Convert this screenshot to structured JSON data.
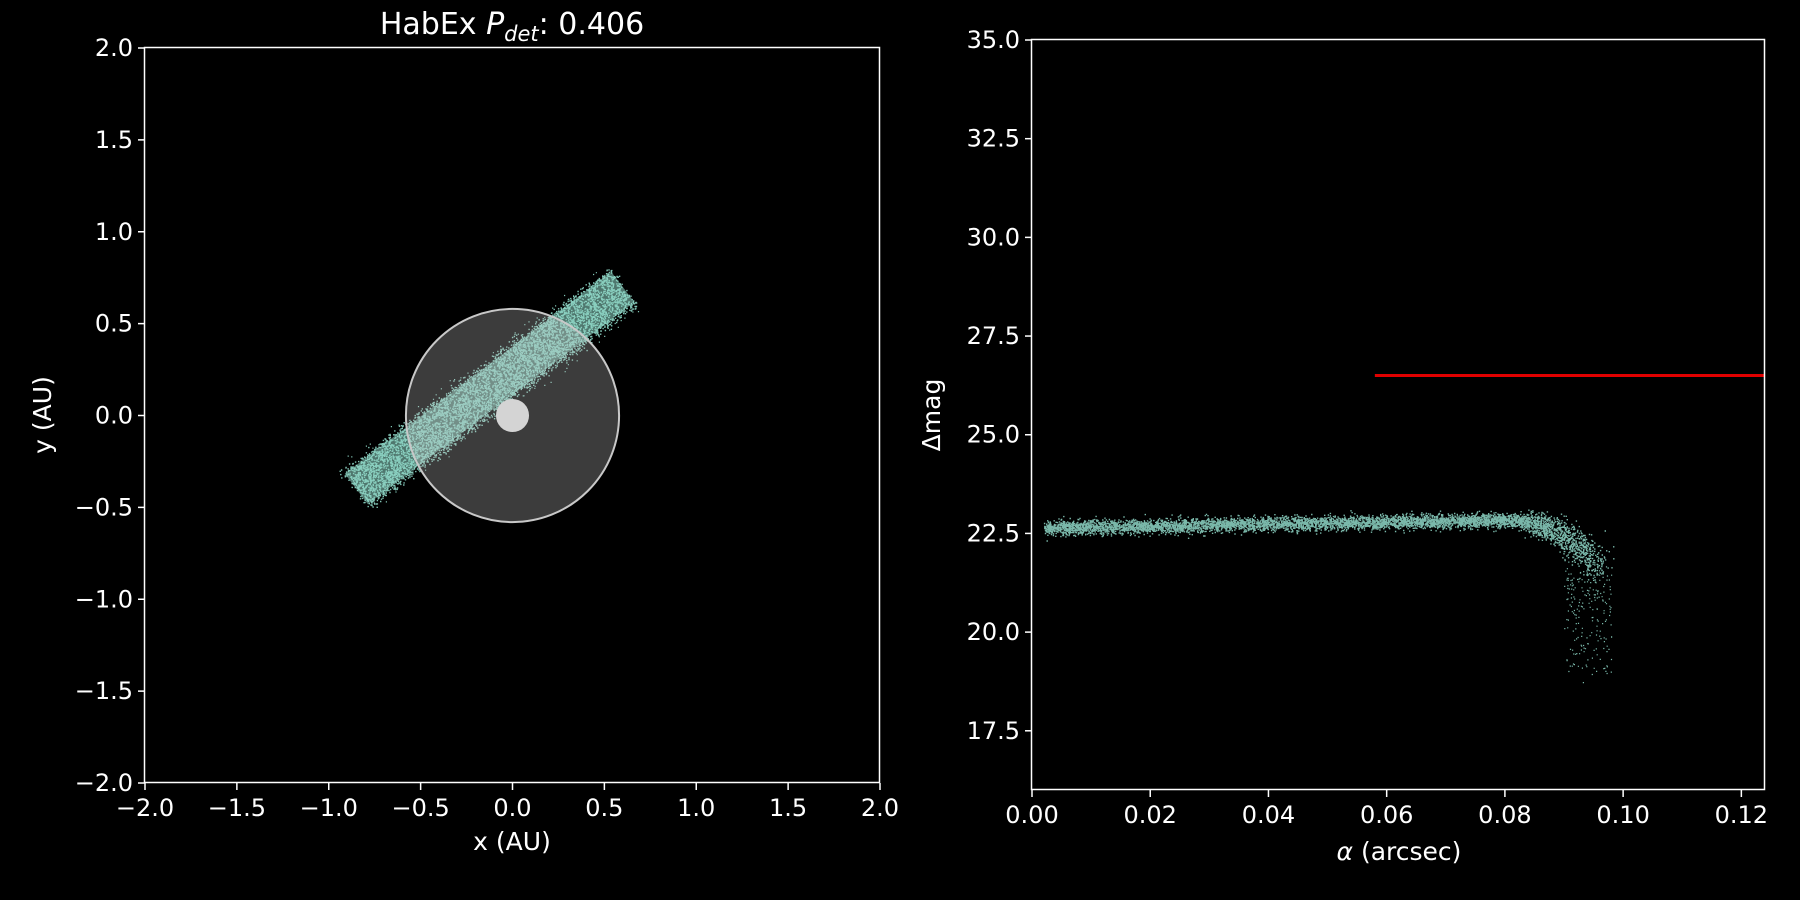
{
  "chart_data": [
    {
      "type": "scatter",
      "title_prefix": "HabEx ",
      "title_symbol": "P",
      "title_subscript": "det",
      "title_suffix": ": 0.406",
      "xlabel": "x (AU)",
      "ylabel": "y (AU)",
      "xlim": [
        -2.0,
        2.0
      ],
      "ylim": [
        -2.0,
        2.0
      ],
      "xticks": [
        "−2.0",
        "−1.5",
        "−1.0",
        "−0.5",
        "0.0",
        "0.5",
        "1.0",
        "1.5",
        "2.0"
      ],
      "yticks": [
        "−2.0",
        "−1.5",
        "−1.0",
        "−0.5",
        "0.0",
        "0.5",
        "1.0",
        "1.5",
        "2.0"
      ],
      "grid": false,
      "cloud": {
        "color": "#8fd8c8",
        "start": [
          -0.85,
          -0.4
        ],
        "end": [
          0.6,
          0.7
        ],
        "half_width": 0.13,
        "count": 6000
      },
      "inner_working_angle_radius": 0.58,
      "star_radius": 0.09,
      "mask_color": "#c8c8c8",
      "star_color": "#d4d4d4"
    },
    {
      "type": "scatter",
      "xlabel_symbol": "α",
      "xlabel_suffix": " (arcsec)",
      "ylabel": "Δmag",
      "xlim": [
        0.0,
        0.124
      ],
      "ylim": [
        16.0,
        35.0
      ],
      "xticks": [
        "0.00",
        "0.02",
        "0.04",
        "0.06",
        "0.08",
        "0.10",
        "0.12"
      ],
      "yticks": [
        "17.5",
        "20.0",
        "22.5",
        "25.0",
        "27.5",
        "30.0",
        "32.5",
        "35.0"
      ],
      "grid": false,
      "cloud": {
        "color": "#8fd8c8",
        "alpha_range": [
          0.002,
          0.098
        ],
        "dmag_start": 22.65,
        "dmag_peak": 22.85,
        "count": 6000
      },
      "limit_line": {
        "color": "#e00000",
        "x": [
          0.058,
          0.124
        ],
        "y": 26.5
      }
    }
  ]
}
